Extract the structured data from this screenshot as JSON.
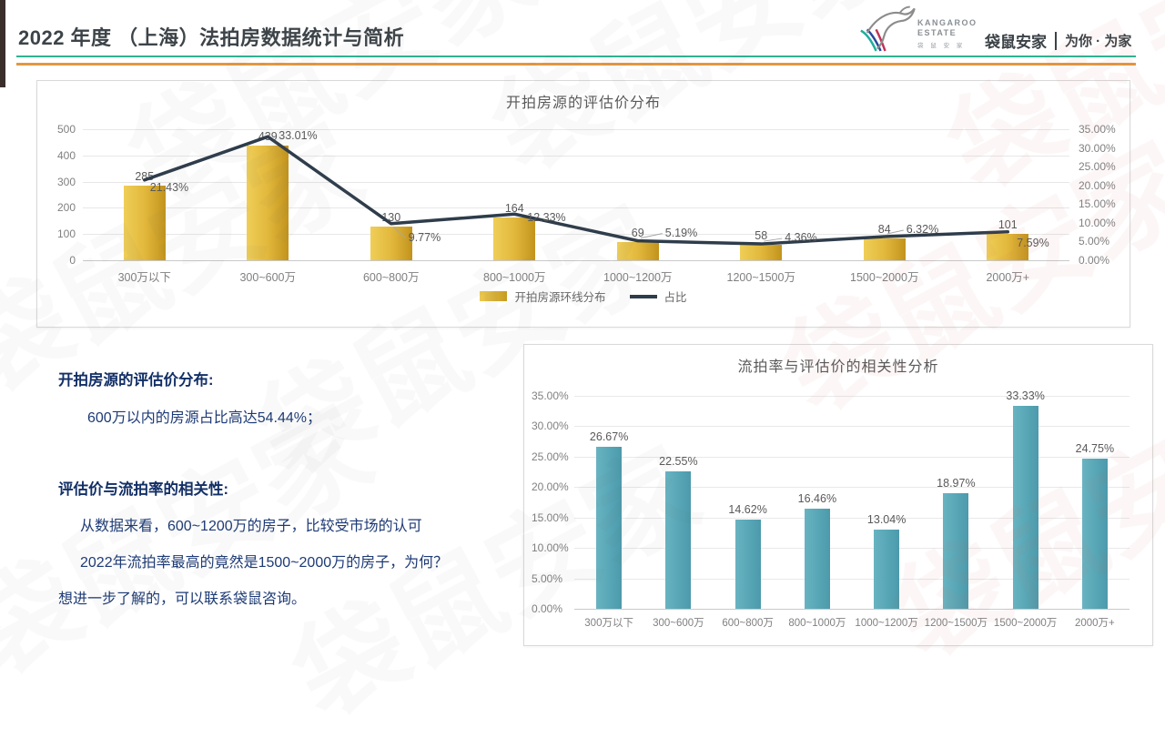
{
  "page": {
    "watermark_text": "袋鼠安家"
  },
  "header": {
    "title": "2022 年度 （上海）法拍房数据统计与简析",
    "logo": {
      "icon": "kangaroo-logo",
      "brand_name_line1": "KANGAROO",
      "brand_name_line2": "ESTATE",
      "brand_name_cn": "袋 鼠 安 家",
      "company_cn": "袋鼠安家",
      "slogan": "为你 · 为家"
    },
    "accent_colors": {
      "green_line": "#2db391",
      "orange_line": "#e2973f"
    }
  },
  "notes": {
    "heading1": "开拍房源的评估价分布:",
    "body1": "600万以内的房源占比高达54.44%；",
    "heading2": "评估价与流拍率的相关性:",
    "body2_line1": "从数据来看，600~1200万的房子，比较受市场的认可",
    "body2_line2": "2022年流拍率最高的竟然是1500~2000万的房子，为何？",
    "body3": "想进一步了解的，可以联系袋鼠咨询。"
  },
  "chart_data": [
    {
      "type": "bar",
      "combo_with_line": true,
      "title": "开拍房源的评估价分布",
      "categories": [
        "300万以下",
        "300~600万",
        "600~800万",
        "800~1000万",
        "1000~1200万",
        "1200~1500万",
        "1500~2000万",
        "2000万+"
      ],
      "series": [
        {
          "name": "开拍房源环线分布",
          "type": "bar",
          "axis": "left",
          "values": [
            285,
            439,
            130,
            164,
            69,
            58,
            84,
            101
          ],
          "color": "#d9a92e"
        },
        {
          "name": "占比",
          "type": "line",
          "axis": "right",
          "values_percent": [
            21.43,
            33.01,
            9.77,
            12.33,
            5.19,
            4.36,
            6.32,
            7.59
          ],
          "labels": [
            "21.43%",
            "33.01%",
            "9.77%",
            "12.33%",
            "5.19%",
            "4.36%",
            "6.32%",
            "7.59%"
          ],
          "color": "#2e3c4b"
        }
      ],
      "left_axis": {
        "min": 0,
        "max": 500,
        "ticks": [
          500,
          400,
          300,
          200,
          100,
          0
        ]
      },
      "right_axis": {
        "min": 0,
        "max": 35,
        "ticks": [
          "35.00%",
          "30.00%",
          "25.00%",
          "20.00%",
          "15.00%",
          "10.00%",
          "5.00%",
          "0.00%"
        ]
      },
      "legend": [
        "开拍房源环线分布",
        "占比"
      ],
      "legend_position": "bottom",
      "grid": true
    },
    {
      "type": "bar",
      "title": "流拍率与评估价的相关性分析",
      "categories": [
        "300万以下",
        "300~600万",
        "600~800万",
        "800~1000万",
        "1000~1200万",
        "1200~1500万",
        "1500~2000万",
        "2000万+"
      ],
      "values": [
        26.67,
        22.55,
        14.62,
        16.46,
        13.04,
        18.97,
        33.33,
        24.75
      ],
      "labels": [
        "26.67%",
        "22.55%",
        "14.62%",
        "16.46%",
        "13.04%",
        "18.97%",
        "33.33%",
        "24.75%"
      ],
      "bar_color": "#57a8b8",
      "y_axis": {
        "min": 0,
        "max": 35,
        "ticks": [
          "35.00%",
          "30.00%",
          "25.00%",
          "20.00%",
          "15.00%",
          "10.00%",
          "5.00%",
          "0.00%"
        ]
      },
      "grid": true
    }
  ]
}
